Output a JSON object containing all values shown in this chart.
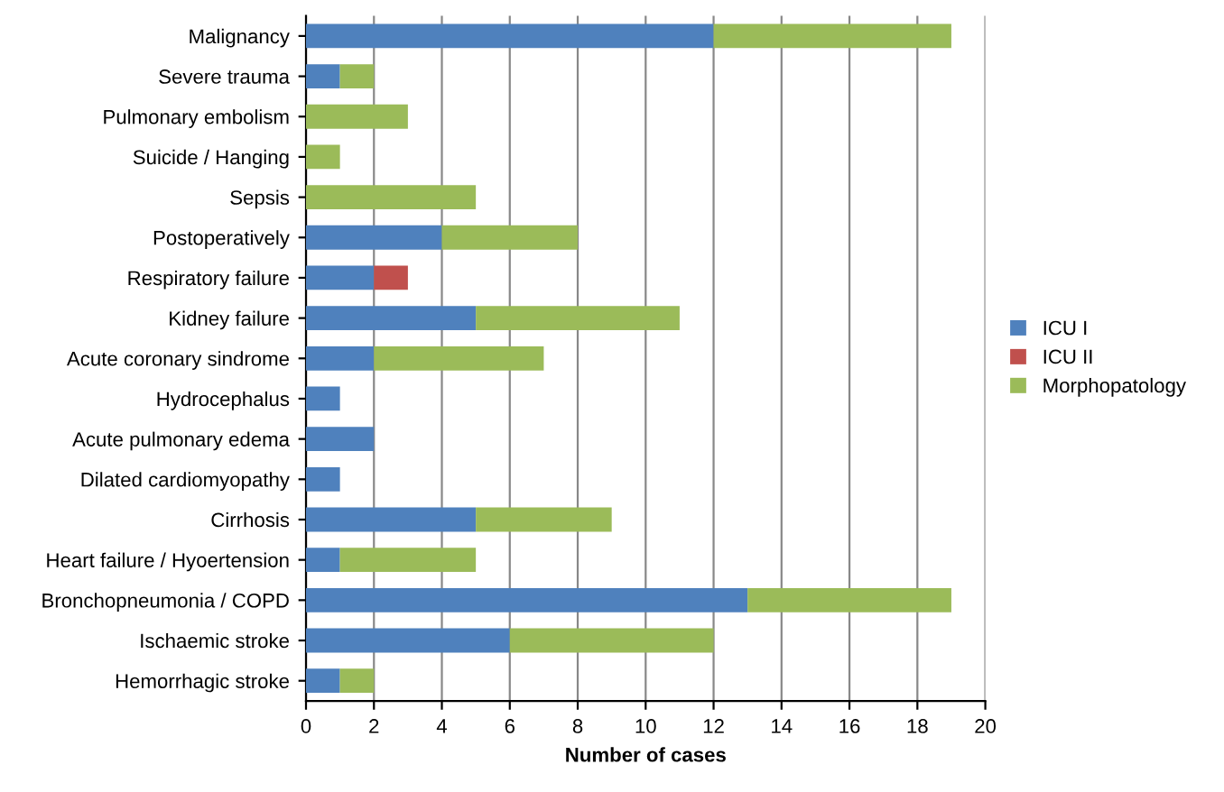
{
  "chart_data": {
    "type": "bar",
    "orientation": "horizontal",
    "stacked": true,
    "xlabel": "Number of cases",
    "categories": [
      "Malignancy",
      "Severe trauma",
      "Pulmonary embolism",
      "Suicide / Hanging",
      "Sepsis",
      "Postoperatively",
      "Respiratory failure",
      "Kidney failure",
      "Acute coronary sindrome",
      "Hydrocephalus",
      "Acute pulmonary edema",
      "Dilated cardiomyopathy",
      "Cirrhosis",
      "Heart failure / Hyoertension",
      "Bronchopneumonia / COPD",
      "Ischaemic stroke",
      "Hemorrhagic stroke"
    ],
    "series": [
      {
        "name": "ICU I",
        "color": "#4f81bd",
        "values": [
          12,
          1,
          0,
          0,
          0,
          4,
          2,
          5,
          2,
          1,
          2,
          1,
          5,
          1,
          13,
          6,
          1
        ]
      },
      {
        "name": "ICU II",
        "color": "#c0504d",
        "values": [
          0,
          0,
          0,
          0,
          0,
          0,
          1,
          0,
          0,
          0,
          0,
          0,
          0,
          0,
          0,
          0,
          0
        ]
      },
      {
        "name": "Morphopatology",
        "color": "#9bbb59",
        "values": [
          7,
          1,
          3,
          1,
          5,
          4,
          0,
          6,
          5,
          0,
          0,
          0,
          4,
          4,
          6,
          6,
          1
        ]
      }
    ],
    "xlim": [
      0,
      20
    ],
    "xticks": [
      0,
      2,
      4,
      6,
      8,
      10,
      12,
      14,
      16,
      18,
      20
    ],
    "grid": "x",
    "legend": "right"
  }
}
